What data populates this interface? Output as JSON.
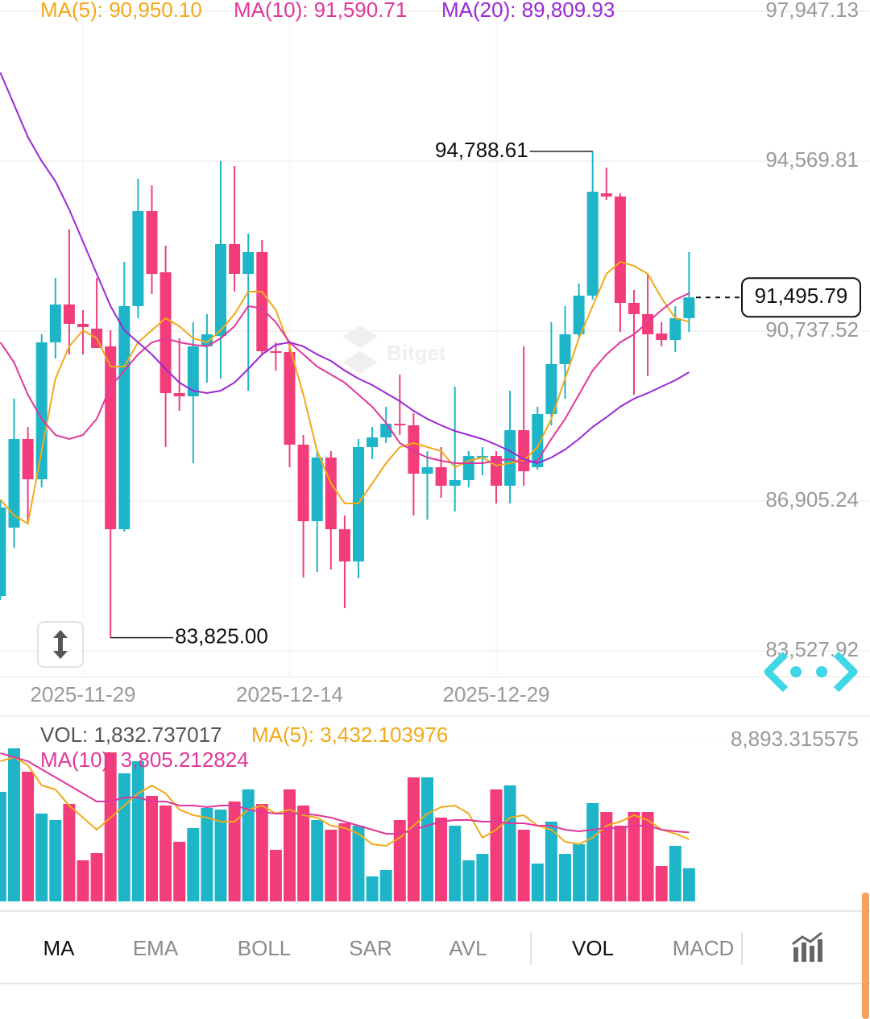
{
  "chart_data": [
    {
      "type": "candlestick",
      "categories": [
        null,
        null,
        null,
        null,
        null,
        null,
        "2025-11-29",
        null,
        null,
        null,
        null,
        null,
        null,
        null,
        null,
        null,
        null,
        null,
        null,
        null,
        null,
        "2025-12-14",
        null,
        null,
        null,
        null,
        null,
        null,
        null,
        null,
        null,
        null,
        null,
        null,
        null,
        null,
        "2025-12-29",
        null,
        null,
        null,
        null,
        null,
        null,
        null,
        null,
        null,
        null,
        null,
        null,
        null,
        null
      ],
      "open": [
        84763,
        86306,
        88304,
        87396,
        90483,
        91337,
        90901,
        90792,
        90392,
        86270,
        91300,
        93443,
        92063,
        89339,
        89266,
        90392,
        90628,
        92699,
        92027,
        92517,
        90283,
        90265,
        88177,
        86451,
        87886,
        86270,
        85543,
        88122,
        88340,
        88649,
        88613,
        87523,
        87668,
        87251,
        87378,
        87886,
        87922,
        87251,
        88504,
        87668,
        88867,
        89993,
        90665,
        91536,
        93843,
        93770,
        91373,
        91119,
        90683,
        90537,
        91028
      ],
      "high": [
        86942,
        89212,
        88576,
        90665,
        91936,
        93025,
        91209,
        91936,
        90755,
        92299,
        94169,
        94024,
        92662,
        90574,
        90937,
        91119,
        94569,
        94460,
        92935,
        92789,
        90483,
        90483,
        88395,
        88031,
        88031,
        86579,
        88304,
        88576,
        89030,
        89757,
        88885,
        88031,
        88122,
        89484,
        88031,
        88122,
        88031,
        89393,
        90392,
        89030,
        90937,
        91300,
        91809,
        94788.61,
        94424,
        93843,
        91663,
        92027,
        90937,
        91300,
        92517
      ],
      "low": [
        84672,
        85852,
        86397,
        87214,
        90120,
        90211,
        90211,
        90356,
        83825,
        86215,
        91028,
        91573,
        88122,
        88939,
        87759,
        89575,
        89666,
        91627,
        89393,
        90211,
        89847,
        87668,
        85180,
        85307,
        85362,
        84490,
        85162,
        87850,
        88213,
        88395,
        86579,
        86488,
        86978,
        86669,
        87214,
        87487,
        86851,
        86851,
        87251,
        87614,
        88613,
        89212,
        90574,
        91445,
        93697,
        90719,
        89303,
        89720,
        90392,
        90265,
        90719
      ],
      "close": [
        86760,
        88304,
        87396,
        90483,
        91337,
        90901,
        90828,
        90356,
        86270,
        91300,
        93443,
        92027,
        89339,
        89266,
        90392,
        90665,
        92699,
        92027,
        92517,
        90283,
        90265,
        88177,
        86451,
        87886,
        86270,
        85543,
        88122,
        88340,
        88649,
        88613,
        87523,
        87668,
        87251,
        87378,
        87922,
        87922,
        87251,
        88504,
        87577,
        88867,
        89993,
        90665,
        91536,
        93879,
        93770,
        91373,
        91119,
        90665,
        90537,
        91028,
        91495.79
      ],
      "up_color": "#1fb5c8",
      "down_color": "#f23d7a",
      "ylim": [
        83527.92,
        97947.13
      ],
      "yticks": [
        {
          "value": 83527.92,
          "label": "83,527.92"
        },
        {
          "value": 86905.24,
          "label": "86,905.24"
        },
        {
          "value": 90737.52,
          "label": "90,737.52"
        },
        {
          "value": 94569.81,
          "label": "94,569.81"
        },
        {
          "value": 97947.13,
          "label": "97,947.13"
        }
      ],
      "grid": true,
      "series": [
        {
          "name": "MA(5): 90,950.10",
          "color": "#f2a91a",
          "values": [
            86942,
            86579,
            86397,
            88031,
            89666,
            90392,
            90755,
            90574,
            89938,
            89938,
            90483,
            90755,
            91028,
            90846,
            90574,
            90483,
            90755,
            91119,
            91627,
            91627,
            91209,
            90392,
            89303,
            88031,
            87305,
            86851,
            86851,
            87305,
            87759,
            88122,
            88213,
            88122,
            88031,
            87668,
            87813,
            87886,
            87705,
            87759,
            87813,
            88122,
            88758,
            89666,
            90574,
            91300,
            92027,
            92299,
            92208,
            92027,
            91482,
            91028,
            90950.1
          ]
        },
        {
          "name": "MA(10): 91,590.71",
          "color": "#e0389a",
          "values": [
            90483,
            90029,
            89303,
            88758,
            88395,
            88304,
            88395,
            88758,
            89484,
            89847,
            90211,
            90483,
            90574,
            90483,
            90429,
            90392,
            90574,
            90846,
            91300,
            91246,
            90937,
            90483,
            90211,
            89938,
            89757,
            89575,
            89303,
            89030,
            88667,
            88213,
            88031,
            87886,
            87813,
            87759,
            87759,
            87759,
            87813,
            87850,
            87759,
            87813,
            88304,
            88758,
            89303,
            89847,
            90211,
            90483,
            90665,
            90937,
            91209,
            91445,
            91590.71
          ]
        },
        {
          "name": "MA(20): 89,809.93",
          "color": "#9a28d8",
          "values": [
            96567,
            95840,
            95114,
            94569,
            94115,
            93479,
            92753,
            92027,
            91300,
            90755,
            90483,
            90211,
            89884,
            89575,
            89393,
            89339,
            89393,
            89575,
            89884,
            90211,
            90429,
            90483,
            90392,
            90211,
            90065,
            89847,
            89666,
            89521,
            89339,
            89157,
            88939,
            88758,
            88613,
            88485,
            88395,
            88304,
            88177,
            88031,
            87850,
            87759,
            87886,
            88068,
            88304,
            88576,
            88794,
            89030,
            89212,
            89339,
            89484,
            89630,
            89809.93
          ]
        }
      ],
      "annotations": [
        {
          "value": 94788.61,
          "label": "94,788.61"
        },
        {
          "value": 83825,
          "label": "83,825.00"
        }
      ],
      "last_price": {
        "value": 91495.79,
        "label": "91,495.79"
      }
    },
    {
      "type": "bar",
      "ylim": [
        0,
        8893.315575
      ],
      "yticks": [
        {
          "value": 8893.315575,
          "label": "8,893.315575"
        }
      ],
      "series": [
        {
          "type": "bar",
          "name": "VOL: 1,832.737017",
          "color": "#555555",
          "colors": [
            "#1fb5c8",
            "#1fb5c8",
            "#f23d7a",
            "#1fb5c8",
            "#1fb5c8",
            "#f23d7a",
            "#f23d7a",
            "#f23d7a",
            "#f23d7a",
            "#1fb5c8",
            "#1fb5c8",
            "#f23d7a",
            "#f23d7a",
            "#f23d7a",
            "#1fb5c8",
            "#1fb5c8",
            "#1fb5c8",
            "#f23d7a",
            "#1fb5c8",
            "#f23d7a",
            "#f23d7a",
            "#f23d7a",
            "#f23d7a",
            "#1fb5c8",
            "#f23d7a",
            "#f23d7a",
            "#1fb5c8",
            "#1fb5c8",
            "#1fb5c8",
            "#f23d7a",
            "#f23d7a",
            "#1fb5c8",
            "#f23d7a",
            "#1fb5c8",
            "#1fb5c8",
            "#1fb5c8",
            "#f23d7a",
            "#1fb5c8",
            "#f23d7a",
            "#1fb5c8",
            "#1fb5c8",
            "#1fb5c8",
            "#1fb5c8",
            "#1fb5c8",
            "#f23d7a",
            "#f23d7a",
            "#f23d7a",
            "#f23d7a",
            "#f23d7a",
            "#1fb5c8",
            "#1fb5c8"
          ],
          "values": [
            6048,
            8449,
            7160,
            4847,
            4491,
            5381,
            2268,
            2668,
            8227,
            7071,
            7738,
            5826,
            5292,
            3291,
            4047,
            5159,
            5070,
            5514,
            6181,
            5381,
            2846,
            6181,
            5292,
            4491,
            3958,
            4314,
            4180,
            1379,
            1734,
            4491,
            6848,
            6848,
            4625,
            4180,
            2268,
            2624,
            6181,
            6404,
            3958,
            2090,
            4403,
            2624,
            3157,
            5425,
            4936,
            4180,
            4936,
            4936,
            1957,
            3068,
            1832.737017
          ]
        },
        {
          "type": "line",
          "name": "MA(5): 3,432.103976",
          "color": "#f2a91a",
          "values": [
            7738,
            7960,
            7515,
            6404,
            6181,
            5292,
            4625,
            3958,
            4625,
            5292,
            5959,
            6404,
            5959,
            5070,
            4758,
            4625,
            4403,
            4403,
            5070,
            5292,
            4847,
            5070,
            4758,
            4625,
            4180,
            4047,
            3735,
            3157,
            3068,
            3513,
            4180,
            4847,
            5203,
            5292,
            4847,
            3513,
            3958,
            4625,
            4758,
            4180,
            3958,
            3291,
            3157,
            3513,
            4180,
            4403,
            4758,
            4491,
            3958,
            3735,
            3432.103976
          ]
        },
        {
          "type": "line",
          "name": "MA(10): 3,805.212824",
          "color": "#e0389a",
          "values": [
            8182,
            7960,
            7738,
            7293,
            6848,
            6404,
            5959,
            5514,
            5514,
            5737,
            5737,
            5514,
            5514,
            5292,
            5292,
            5203,
            5292,
            5292,
            5070,
            4936,
            4847,
            4847,
            4847,
            4758,
            4625,
            4403,
            4180,
            3958,
            3735,
            3735,
            3958,
            4180,
            4403,
            4491,
            4491,
            4403,
            4403,
            4314,
            4314,
            4180,
            4180,
            3958,
            3869,
            3958,
            4047,
            4047,
            4180,
            4180,
            3958,
            3869,
            3805.212824
          ]
        }
      ]
    }
  ],
  "watermark": "Bitget",
  "toolbar": {
    "tabs": [
      {
        "label": "MA",
        "active": true
      },
      {
        "label": "EMA",
        "active": false
      },
      {
        "label": "BOLL",
        "active": false
      },
      {
        "label": "SAR",
        "active": false
      },
      {
        "label": "AVL",
        "active": false
      },
      {
        "label": "VOL",
        "active": true
      },
      {
        "label": "MACD",
        "active": false
      }
    ]
  }
}
